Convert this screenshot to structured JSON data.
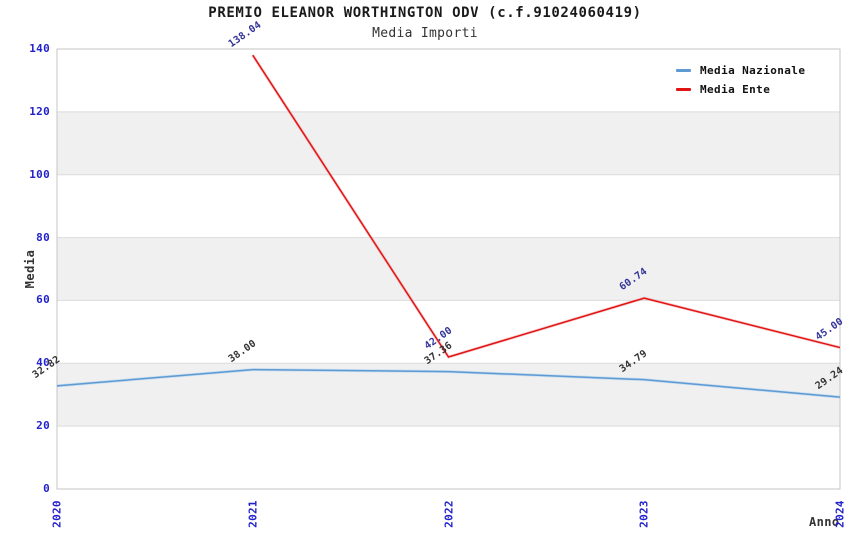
{
  "chart_data": {
    "type": "line",
    "title": "PREMIO ELEANOR WORTHINGTON ODV (c.f.91024060419)",
    "subtitle": "Media Importi",
    "xlabel": "Anno",
    "ylabel": "Media",
    "x": [
      2020,
      2021,
      2022,
      2023,
      2024
    ],
    "series": [
      {
        "name": "Media Nazionale",
        "color": "#5E9AD3",
        "halo_color": "#A9CEEE",
        "label_color": "#333333",
        "values": [
          32.82,
          38.0,
          37.36,
          34.79,
          29.24
        ]
      },
      {
        "name": "Media Ente",
        "color": "#E01414",
        "halo_color": "#F2A0A0",
        "label_color": "#333399",
        "values": [
          null,
          138.04,
          42.0,
          60.74,
          45.0
        ]
      }
    ],
    "ylim": [
      0,
      140
    ],
    "yticks": [
      0,
      20,
      40,
      60,
      80,
      100,
      120,
      140
    ],
    "shaded_bands": [
      [
        20,
        40
      ],
      [
        60,
        80
      ],
      [
        100,
        120
      ]
    ],
    "band_color": "#F0F0F0",
    "grid_color": "#DCDCDC",
    "border_color": "#C6C6C6",
    "tick_color": "#2222CC",
    "grid": true,
    "legend_position": "top-right"
  },
  "legend": {
    "items": [
      {
        "label": "Media Nazionale",
        "color": "#5E9AD3"
      },
      {
        "label": "Media Ente",
        "color": "#E01414"
      }
    ]
  }
}
